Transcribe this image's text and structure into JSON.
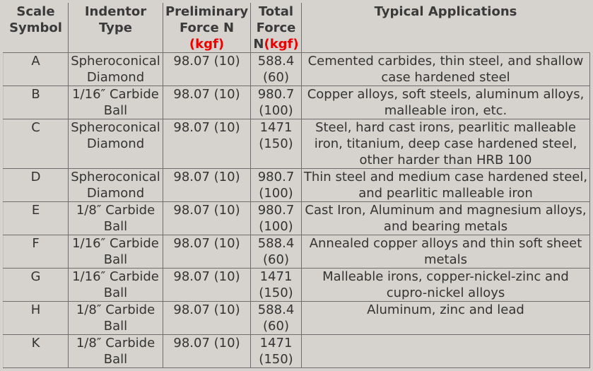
{
  "headers": {
    "scale_symbol": "Scale Symbol",
    "indentor_type": "Indentor Type",
    "preliminary_force": "Preliminary Force N",
    "preliminary_unit": "(kgf)",
    "total_force": "Total Force N",
    "total_unit": "(kgf)",
    "typical_applications": "Typical Applications"
  },
  "colors": {
    "unit_text": "#ee0000",
    "background": "#d6d3ce",
    "text": "#333333"
  },
  "rows": [
    {
      "scale": "A",
      "indentor": "Spheroconical Diamond",
      "preliminary": "98.07 (10)",
      "total": "588.4 (60)",
      "applications": "Cemented carbides, thin steel, and shallow case hardened steel"
    },
    {
      "scale": "B",
      "indentor": "1/16″ Carbide Ball",
      "preliminary": "98.07 (10)",
      "total": "980.7 (100)",
      "applications": "Copper alloys, soft steels, aluminum alloys, malleable iron, etc."
    },
    {
      "scale": "C",
      "indentor": "Spheroconical Diamond",
      "preliminary": "98.07 (10)",
      "total": "1471 (150)",
      "applications": "Steel, hard cast irons, pearlitic malleable iron, titanium, deep case hardened steel, other harder than HRB 100"
    },
    {
      "scale": "D",
      "indentor": "Spheroconical Diamond",
      "preliminary": "98.07 (10)",
      "total": "980.7 (100)",
      "applications": "Thin steel and medium case hardened steel, and pearlitic malleable iron"
    },
    {
      "scale": "E",
      "indentor": "1/8″ Carbide Ball",
      "preliminary": "98.07 (10)",
      "total": "980.7 (100)",
      "applications": "Cast Iron, Aluminum and magnesium alloys, and bearing metals"
    },
    {
      "scale": "F",
      "indentor": "1/16″ Carbide Ball",
      "preliminary": "98.07 (10)",
      "total": "588.4 (60)",
      "applications": "Annealed copper alloys and thin soft sheet metals"
    },
    {
      "scale": "G",
      "indentor": "1/16″ Carbide Ball",
      "preliminary": "98.07 (10)",
      "total": "1471 (150)",
      "applications": "Malleable irons, copper-nickel-zinc and cupro-nickel alloys"
    },
    {
      "scale": "H",
      "indentor": "1/8″ Carbide Ball",
      "preliminary": "98.07 (10)",
      "total": "588.4 (60)",
      "applications": "Aluminum, zinc and lead"
    },
    {
      "scale": "K",
      "indentor": "1/8″ Carbide Ball",
      "preliminary": "98.07 (10)",
      "total": "1471 (150)",
      "applications": ""
    }
  ]
}
